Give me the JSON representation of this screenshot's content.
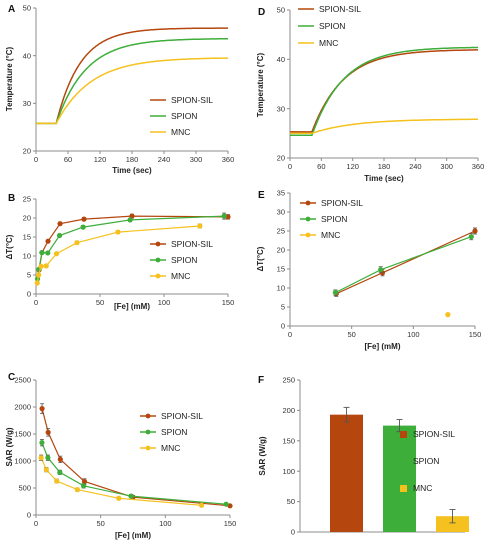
{
  "colors": {
    "sil": "#b5470e",
    "spion": "#3dae3a",
    "mnc": "#f5c11e",
    "axis": "#8c8c8c",
    "errbar": "#555555"
  },
  "chart_data": [
    {
      "id": "A",
      "panel_label": "A",
      "type": "line",
      "xlabel": "Time (sec)",
      "ylabel": "Temperature (°C)",
      "xlim": [
        0,
        360
      ],
      "ylim": [
        20,
        50
      ],
      "xticks": [
        0,
        60,
        120,
        180,
        240,
        300,
        360
      ],
      "yticks": [
        20,
        30,
        40,
        50
      ],
      "legend_position": "right",
      "series": [
        {
          "name": "SPION-SIL",
          "color": "#b5470e",
          "base": 25.8,
          "tstart": 38,
          "plateau": 45.8,
          "tau": 45
        },
        {
          "name": "SPION",
          "color": "#3dae3a",
          "base": 25.8,
          "tstart": 38,
          "plateau": 43.6,
          "tau": 55
        },
        {
          "name": "MNC",
          "color": "#f5c11e",
          "base": 25.8,
          "tstart": 38,
          "plateau": 39.6,
          "tau": 65
        }
      ]
    },
    {
      "id": "D",
      "panel_label": "D",
      "type": "line",
      "xlabel": "Time (sec)",
      "ylabel": "Temperature (°C)",
      "xlim": [
        0,
        360
      ],
      "ylim": [
        20,
        50
      ],
      "xticks": [
        0,
        60,
        120,
        180,
        240,
        300,
        360
      ],
      "yticks": [
        20,
        30,
        40,
        50
      ],
      "legend_position": "top-left",
      "series": [
        {
          "name": "SPION-SIL",
          "color": "#b5470e",
          "base": 25.3,
          "tstart": 42,
          "plateau": 42.0,
          "tau": 60
        },
        {
          "name": "SPION",
          "color": "#3dae3a",
          "base": 24.6,
          "tstart": 42,
          "plateau": 42.5,
          "tau": 60
        },
        {
          "name": "MNC",
          "color": "#f5c11e",
          "base": 25.0,
          "tstart": 42,
          "plateau": 27.9,
          "tau": 80
        }
      ]
    },
    {
      "id": "B",
      "panel_label": "B",
      "type": "scatter",
      "xlabel": "[Fe] (mM)",
      "ylabel": "ΔT(°C)",
      "xlim": [
        0,
        150
      ],
      "ylim": [
        0,
        25
      ],
      "xticks": [
        0,
        50,
        100,
        150
      ],
      "yticks": [
        0,
        5,
        10,
        15,
        20,
        25
      ],
      "legend_position": "right",
      "series": [
        {
          "name": "SPION-SIL",
          "color": "#b5470e",
          "x": [
            2.4,
            4.7,
            9.4,
            18.8,
            37.5,
            75,
            150
          ],
          "y": [
            6.3,
            10.9,
            13.9,
            18.5,
            19.7,
            20.5,
            20.3
          ],
          "err": [
            0.3,
            0.3,
            0.3,
            0.4,
            0.4,
            0.5,
            0.6
          ]
        },
        {
          "name": "SPION",
          "color": "#3dae3a",
          "x": [
            1.2,
            2.3,
            4.6,
            9.2,
            18.4,
            36.8,
            73.5,
            147
          ],
          "y": [
            4.0,
            6.5,
            10.9,
            10.8,
            15.4,
            17.6,
            19.5,
            20.5
          ],
          "err": [
            0.3,
            0.3,
            0.3,
            0.3,
            0.3,
            0.4,
            0.4,
            0.8
          ]
        },
        {
          "name": "MNC",
          "color": "#f5c11e",
          "x": [
            1,
            2,
            4,
            8,
            16,
            32,
            64,
            128
          ],
          "y": [
            2.9,
            5.0,
            7.3,
            7.4,
            10.6,
            13.5,
            16.3,
            17.9
          ],
          "err": [
            0.2,
            0.2,
            0.3,
            0.3,
            0.3,
            0.4,
            0.4,
            0.5
          ]
        }
      ]
    },
    {
      "id": "E",
      "panel_label": "E",
      "type": "scatter",
      "xlabel": "[Fe] (mM)",
      "ylabel": "ΔT(°C)",
      "xlim": [
        0,
        150
      ],
      "ylim": [
        0,
        35
      ],
      "xticks": [
        0,
        50,
        100,
        150
      ],
      "yticks": [
        0,
        5,
        10,
        15,
        20,
        25,
        30,
        35
      ],
      "legend_position": "top-left",
      "series": [
        {
          "name": "SPION-SIL",
          "color": "#b5470e",
          "x": [
            37.5,
            75,
            150
          ],
          "y": [
            8.5,
            14.0,
            25.0
          ],
          "err": [
            0.7,
            0.8,
            0.8
          ]
        },
        {
          "name": "SPION",
          "color": "#3dae3a",
          "x": [
            36.8,
            73.5,
            147
          ],
          "y": [
            8.8,
            14.8,
            23.5
          ],
          "err": [
            0.7,
            0.8,
            0.8
          ]
        },
        {
          "name": "MNC",
          "color": "#f5c11e",
          "x": [
            128
          ],
          "y": [
            3.0
          ],
          "err": [
            0
          ]
        }
      ]
    },
    {
      "id": "C",
      "panel_label": "C",
      "type": "scatter",
      "xlabel": "[Fe] (mM)",
      "ylabel": "SAR (W/g)",
      "xlim": [
        0,
        150
      ],
      "ylim": [
        0,
        2500
      ],
      "xticks": [
        0,
        50,
        100,
        150
      ],
      "yticks": [
        0,
        500,
        1000,
        1500,
        2000,
        2500
      ],
      "legend_position": "right",
      "series": [
        {
          "name": "SPION-SIL",
          "color": "#b5470e",
          "x": [
            4.7,
            9.4,
            18.8,
            37.5,
            75,
            150
          ],
          "y": [
            1970,
            1530,
            1030,
            620,
            330,
            170
          ],
          "err": [
            90,
            70,
            60,
            50,
            30,
            20
          ]
        },
        {
          "name": "SPION",
          "color": "#3dae3a",
          "x": [
            4.6,
            9.2,
            18.4,
            36.8,
            73.5,
            147
          ],
          "y": [
            1340,
            1060,
            790,
            540,
            350,
            200
          ],
          "err": [
            60,
            50,
            40,
            40,
            30,
            20
          ]
        },
        {
          "name": "MNC",
          "color": "#f5c11e",
          "x": [
            4,
            8,
            16,
            32,
            64,
            128
          ],
          "y": [
            1060,
            840,
            630,
            470,
            310,
            180
          ],
          "err": [
            50,
            40,
            35,
            30,
            25,
            15
          ]
        }
      ]
    },
    {
      "id": "F",
      "panel_label": "F",
      "type": "bar",
      "ylabel": "SAR (W/g)",
      "ylim": [
        0,
        250
      ],
      "yticks": [
        0,
        50,
        100,
        150,
        200,
        250
      ],
      "legend_position": "right",
      "categories": [
        "SPION-SIL",
        "SPION",
        "MNC"
      ],
      "colors": [
        "#b5470e",
        "#3dae3a",
        "#f5c11e"
      ],
      "values": [
        193,
        175,
        26
      ],
      "err": [
        12,
        10,
        11
      ]
    }
  ]
}
